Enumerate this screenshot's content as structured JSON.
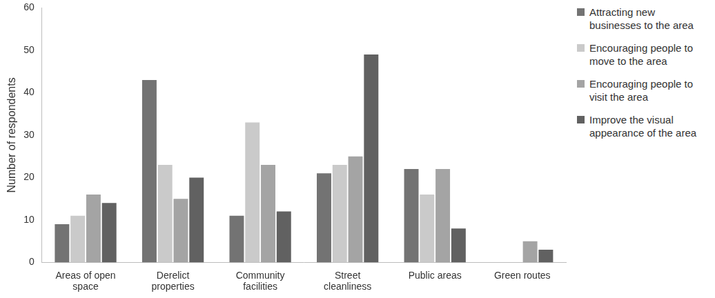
{
  "chart_data": {
    "type": "bar",
    "categories": [
      "Areas of open space",
      "Derelict properties",
      "Community facilities",
      "Street cleanliness",
      "Public areas",
      "Green routes"
    ],
    "series": [
      {
        "name": "Attracting new businesses to the area",
        "color": "#737373",
        "values": [
          9,
          43,
          11,
          21,
          22,
          0
        ]
      },
      {
        "name": "Encouraging people to move to the area",
        "color": "#cacaca",
        "values": [
          11,
          23,
          33,
          23,
          16,
          0
        ]
      },
      {
        "name": "Encouraging people to visit the area",
        "color": "#a4a4a4",
        "values": [
          16,
          15,
          23,
          25,
          22,
          5
        ]
      },
      {
        "name": "Improve the visual appearance of the area",
        "color": "#616161",
        "values": [
          14,
          20,
          12,
          49,
          8,
          3
        ]
      }
    ],
    "y_label": "Number of respondents",
    "ylim": [
      0,
      60
    ],
    "yticks": [
      0,
      10,
      20,
      30,
      40,
      50,
      60
    ],
    "grid": false,
    "legend": "right"
  }
}
